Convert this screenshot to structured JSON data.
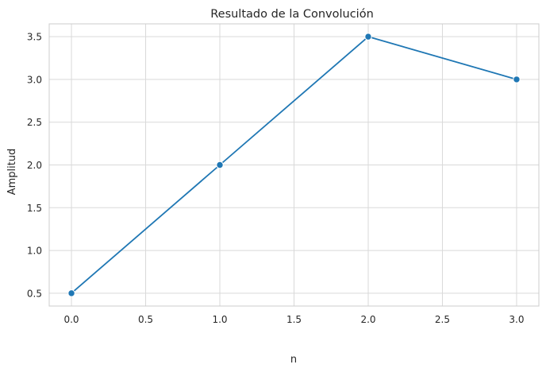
{
  "chart_data": {
    "type": "line",
    "title": "Resultado de la Convolución",
    "xlabel": "n",
    "ylabel": "Amplitud",
    "x": [
      0,
      1,
      2,
      3
    ],
    "series": [
      {
        "values": [
          0.5,
          2.0,
          3.5,
          3.0
        ],
        "color": "#1f77b4",
        "marker": "circle"
      }
    ],
    "xticks": [
      "0.0",
      "0.5",
      "1.0",
      "1.5",
      "2.0",
      "2.5",
      "3.0"
    ],
    "yticks": [
      "0.5",
      "1.0",
      "1.5",
      "2.0",
      "2.5",
      "3.0",
      "3.5"
    ],
    "xlim": [
      -0.15,
      3.15
    ],
    "ylim": [
      0.35,
      3.65
    ],
    "grid": true,
    "style": {
      "background": "#ffffff",
      "grid_color": "#d9d9d9",
      "spine_color": "#cccccc",
      "text_color": "#262626"
    }
  }
}
